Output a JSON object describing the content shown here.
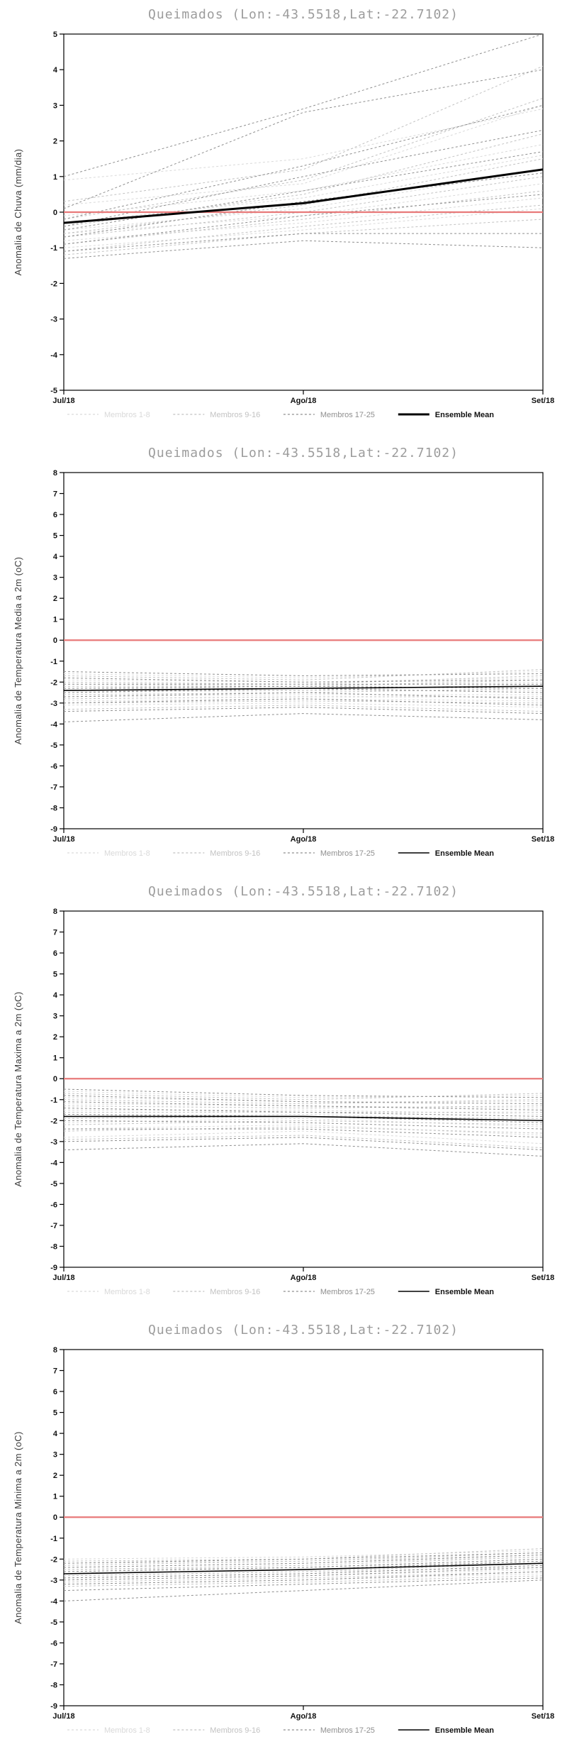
{
  "chart_data": [
    {
      "type": "line",
      "title": "Queimados (Lon:-43.5518,Lat:-22.7102)",
      "ylabel": "Anomalia de Chuva (mm/dia)",
      "ylim": [
        -5,
        5
      ],
      "yticks": [
        5,
        4,
        3,
        2,
        1,
        0,
        -1,
        -2,
        -3,
        -4,
        -5
      ],
      "categories": [
        "Jul/18",
        "Ago/18",
        "Set/18"
      ],
      "zero_line_color": "#e87a7a",
      "legend_position": "bottom",
      "groups": [
        {
          "label": "Membros 1-8",
          "color": "#d9d9d9",
          "members": [
            [
              0.9,
              1.5,
              2.9
            ],
            [
              0.2,
              0.8,
              3.0
            ],
            [
              -0.1,
              0.6,
              1.9
            ],
            [
              -0.3,
              0.4,
              1.6
            ],
            [
              -0.5,
              0.1,
              1.2
            ],
            [
              -0.6,
              -0.1,
              0.8
            ],
            [
              -0.8,
              -0.3,
              0.4
            ],
            [
              -1.0,
              -0.5,
              0.1
            ]
          ]
        },
        {
          "label": "Membros 9-16",
          "color": "#c2c2c2",
          "members": [
            [
              0.3,
              1.2,
              4.1
            ],
            [
              -0.2,
              0.9,
              3.2
            ],
            [
              -0.4,
              0.5,
              2.2
            ],
            [
              -0.6,
              0.2,
              1.5
            ],
            [
              -0.7,
              0.0,
              1.0
            ],
            [
              -0.9,
              -0.2,
              0.6
            ],
            [
              -1.1,
              -0.4,
              0.2
            ],
            [
              -1.2,
              -0.6,
              -0.2
            ]
          ]
        },
        {
          "label": "Membros 17-25",
          "color": "#8f8f8f",
          "members": [
            [
              1.0,
              2.9,
              5.0
            ],
            [
              0.1,
              2.8,
              4.0
            ],
            [
              -0.2,
              1.3,
              3.0
            ],
            [
              -0.4,
              1.0,
              2.3
            ],
            [
              -0.5,
              0.6,
              1.7
            ],
            [
              -0.7,
              0.3,
              1.1
            ],
            [
              -0.9,
              -0.1,
              0.5
            ],
            [
              -1.1,
              -0.6,
              -0.6
            ],
            [
              -1.3,
              -0.8,
              -1.0
            ]
          ]
        }
      ],
      "mean": {
        "label": "Ensemble Mean",
        "color": "#000000",
        "width": 3,
        "values": [
          -0.3,
          0.25,
          1.2
        ]
      }
    },
    {
      "type": "line",
      "title": "Queimados (Lon:-43.5518,Lat:-22.7102)",
      "ylabel": "Anomalia de Temperatura Media a 2m (oC)",
      "ylim": [
        -9,
        8
      ],
      "yticks": [
        8,
        7,
        6,
        5,
        4,
        3,
        2,
        1,
        0,
        -1,
        -2,
        -3,
        -4,
        -5,
        -6,
        -7,
        -8,
        -9
      ],
      "categories": [
        "Jul/18",
        "Ago/18",
        "Set/18"
      ],
      "zero_line_color": "#e87a7a",
      "legend_position": "bottom",
      "groups": [
        {
          "label": "Membros 1-8",
          "color": "#d9d9d9",
          "members": [
            [
              -1.6,
              -1.8,
              -1.5
            ],
            [
              -1.9,
              -2.0,
              -1.8
            ],
            [
              -2.1,
              -2.2,
              -2.0
            ],
            [
              -2.3,
              -2.3,
              -2.2
            ],
            [
              -2.5,
              -2.4,
              -2.4
            ],
            [
              -2.7,
              -2.6,
              -2.6
            ],
            [
              -2.9,
              -2.8,
              -2.9
            ],
            [
              -3.1,
              -3.0,
              -3.2
            ]
          ]
        },
        {
          "label": "Membros 9-16",
          "color": "#c2c2c2",
          "members": [
            [
              -1.7,
              -1.9,
              -1.4
            ],
            [
              -2.0,
              -2.1,
              -1.7
            ],
            [
              -2.2,
              -2.2,
              -1.9
            ],
            [
              -2.4,
              -2.4,
              -2.1
            ],
            [
              -2.6,
              -2.5,
              -2.3
            ],
            [
              -2.8,
              -2.7,
              -2.7
            ],
            [
              -3.0,
              -2.9,
              -3.0
            ],
            [
              -3.3,
              -3.1,
              -3.4
            ]
          ]
        },
        {
          "label": "Membros 17-25",
          "color": "#8f8f8f",
          "members": [
            [
              -1.5,
              -1.7,
              -1.6
            ],
            [
              -1.8,
              -2.0,
              -1.9
            ],
            [
              -2.1,
              -2.1,
              -2.1
            ],
            [
              -2.3,
              -2.2,
              -2.3
            ],
            [
              -2.5,
              -2.3,
              -2.5
            ],
            [
              -2.7,
              -2.5,
              -2.8
            ],
            [
              -3.0,
              -2.8,
              -3.1
            ],
            [
              -3.4,
              -3.2,
              -3.5
            ],
            [
              -3.9,
              -3.5,
              -3.8
            ]
          ]
        }
      ],
      "mean": {
        "label": "Ensemble Mean",
        "color": "#000000",
        "width": 1.6,
        "values": [
          -2.4,
          -2.3,
          -2.2
        ]
      }
    },
    {
      "type": "line",
      "title": "Queimados (Lon:-43.5518,Lat:-22.7102)",
      "ylabel": "Anomalia de Temperatura Maxima a 2m (oC)",
      "ylim": [
        -9,
        8
      ],
      "yticks": [
        8,
        7,
        6,
        5,
        4,
        3,
        2,
        1,
        0,
        -1,
        -2,
        -3,
        -4,
        -5,
        -6,
        -7,
        -8,
        -9
      ],
      "categories": [
        "Jul/18",
        "Ago/18",
        "Set/18"
      ],
      "zero_line_color": "#e87a7a",
      "legend_position": "bottom",
      "groups": [
        {
          "label": "Membros 1-8",
          "color": "#d9d9d9",
          "members": [
            [
              -0.6,
              -0.9,
              -0.8
            ],
            [
              -0.9,
              -1.1,
              -1.1
            ],
            [
              -1.2,
              -1.3,
              -1.4
            ],
            [
              -1.5,
              -1.5,
              -1.7
            ],
            [
              -1.8,
              -1.7,
              -2.0
            ],
            [
              -2.1,
              -1.9,
              -2.3
            ],
            [
              -2.4,
              -2.2,
              -2.7
            ],
            [
              -2.8,
              -2.5,
              -3.1
            ]
          ]
        },
        {
          "label": "Membros 9-16",
          "color": "#c2c2c2",
          "members": [
            [
              -0.7,
              -1.0,
              -0.7
            ],
            [
              -1.0,
              -1.2,
              -1.0
            ],
            [
              -1.3,
              -1.4,
              -1.3
            ],
            [
              -1.6,
              -1.6,
              -1.6
            ],
            [
              -1.9,
              -1.8,
              -1.9
            ],
            [
              -2.2,
              -2.0,
              -2.2
            ],
            [
              -2.5,
              -2.3,
              -2.6
            ],
            [
              -2.9,
              -2.7,
              -3.3
            ]
          ]
        },
        {
          "label": "Membros 17-25",
          "color": "#8f8f8f",
          "members": [
            [
              -0.5,
              -0.8,
              -0.9
            ],
            [
              -0.8,
              -1.1,
              -1.2
            ],
            [
              -1.1,
              -1.3,
              -1.5
            ],
            [
              -1.4,
              -1.6,
              -1.8
            ],
            [
              -1.7,
              -1.8,
              -2.1
            ],
            [
              -2.0,
              -2.1,
              -2.4
            ],
            [
              -2.4,
              -2.4,
              -2.8
            ],
            [
              -3.0,
              -2.8,
              -3.4
            ],
            [
              -3.4,
              -3.1,
              -3.7
            ]
          ]
        }
      ],
      "mean": {
        "label": "Ensemble Mean",
        "color": "#000000",
        "width": 1.6,
        "values": [
          -1.8,
          -1.8,
          -2.0
        ]
      }
    },
    {
      "type": "line",
      "title": "Queimados (Lon:-43.5518,Lat:-22.7102)",
      "ylabel": "Anomalia de Temperatura Minima a 2m (oC)",
      "ylim": [
        -9,
        8
      ],
      "yticks": [
        8,
        7,
        6,
        5,
        4,
        3,
        2,
        1,
        0,
        -1,
        -2,
        -3,
        -4,
        -5,
        -6,
        -7,
        -8,
        -9
      ],
      "categories": [
        "Jul/18",
        "Ago/18",
        "Set/18"
      ],
      "zero_line_color": "#e87a7a",
      "legend_position": "bottom",
      "groups": [
        {
          "label": "Membros 1-8",
          "color": "#d9d9d9",
          "members": [
            [
              -2.0,
              -1.9,
              -1.6
            ],
            [
              -2.2,
              -2.1,
              -1.8
            ],
            [
              -2.4,
              -2.2,
              -1.9
            ],
            [
              -2.5,
              -2.4,
              -2.1
            ],
            [
              -2.7,
              -2.5,
              -2.2
            ],
            [
              -2.8,
              -2.6,
              -2.4
            ],
            [
              -3.0,
              -2.8,
              -2.5
            ],
            [
              -3.2,
              -3.0,
              -2.7
            ]
          ]
        },
        {
          "label": "Membros 9-16",
          "color": "#c2c2c2",
          "members": [
            [
              -2.1,
              -2.0,
              -1.5
            ],
            [
              -2.3,
              -2.1,
              -1.7
            ],
            [
              -2.5,
              -2.3,
              -1.9
            ],
            [
              -2.6,
              -2.4,
              -2.0
            ],
            [
              -2.8,
              -2.6,
              -2.2
            ],
            [
              -2.9,
              -2.7,
              -2.3
            ],
            [
              -3.1,
              -2.9,
              -2.6
            ],
            [
              -3.3,
              -3.1,
              -2.8
            ]
          ]
        },
        {
          "label": "Membros 17-25",
          "color": "#8f8f8f",
          "members": [
            [
              -2.2,
              -2.0,
              -1.7
            ],
            [
              -2.4,
              -2.2,
              -1.8
            ],
            [
              -2.6,
              -2.4,
              -2.0
            ],
            [
              -2.7,
              -2.5,
              -2.1
            ],
            [
              -2.9,
              -2.7,
              -2.3
            ],
            [
              -3.0,
              -2.8,
              -2.4
            ],
            [
              -3.2,
              -3.0,
              -2.6
            ],
            [
              -3.5,
              -3.2,
              -2.9
            ],
            [
              -4.0,
              -3.5,
              -3.0
            ]
          ]
        }
      ],
      "mean": {
        "label": "Ensemble Mean",
        "color": "#000000",
        "width": 1.6,
        "values": [
          -2.7,
          -2.5,
          -2.2
        ]
      }
    }
  ]
}
